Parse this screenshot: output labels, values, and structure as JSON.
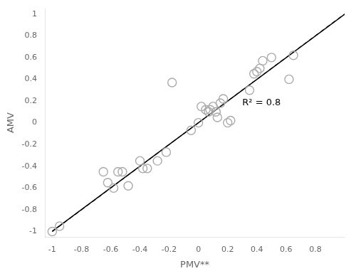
{
  "chart_data": {
    "type": "scatter",
    "xlabel": "PMV**",
    "ylabel": "AMV",
    "xlim": [
      -1.05,
      1.0
    ],
    "ylim": [
      -1.05,
      1.05
    ],
    "xticks": [
      -1.0,
      -0.8,
      -0.6,
      -0.4,
      -0.2,
      0.0,
      0.2,
      0.4,
      0.6,
      0.8
    ],
    "yticks": [
      -1.0,
      -0.8,
      -0.6,
      -0.4,
      -0.2,
      0.0,
      0.2,
      0.4,
      0.6,
      0.8,
      1.0
    ],
    "grid": false,
    "series": [
      {
        "type": "scatter",
        "color": "#aaaaaa",
        "marker": "circle",
        "x": [
          -1.0,
          -0.95,
          -0.65,
          -0.62,
          -0.58,
          -0.55,
          -0.52,
          -0.48,
          -0.4,
          -0.38,
          -0.35,
          -0.28,
          -0.22,
          -0.18,
          -0.05,
          0.0,
          0.02,
          0.05,
          0.07,
          0.08,
          0.1,
          0.12,
          0.13,
          0.15,
          0.17,
          0.2,
          0.22,
          0.35,
          0.38,
          0.4,
          0.42,
          0.44,
          0.5,
          0.62,
          0.65
        ],
        "values": [
          -1.0,
          -0.95,
          -0.45,
          -0.55,
          -0.6,
          -0.45,
          -0.45,
          -0.58,
          -0.35,
          -0.42,
          -0.42,
          -0.35,
          -0.27,
          0.37,
          -0.07,
          0.0,
          0.15,
          0.12,
          0.1,
          0.12,
          0.15,
          0.1,
          0.05,
          0.18,
          0.22,
          0.0,
          0.02,
          0.3,
          0.45,
          0.47,
          0.5,
          0.57,
          0.6,
          0.4,
          0.62
        ]
      },
      {
        "type": "line",
        "color": "#000000",
        "line_style": "solid",
        "x": [
          -1.0,
          1.0
        ],
        "values": [
          -0.9972,
          0.9968
        ]
      },
      {
        "type": "line",
        "color": "#000000",
        "line_style": "dashed",
        "x": [
          -1.0,
          1.0
        ],
        "values": [
          -1.0,
          1.0
        ]
      }
    ],
    "annotations": [
      {
        "text": "R² = 0.8",
        "x": 0.3,
        "y": 0.18
      }
    ]
  }
}
